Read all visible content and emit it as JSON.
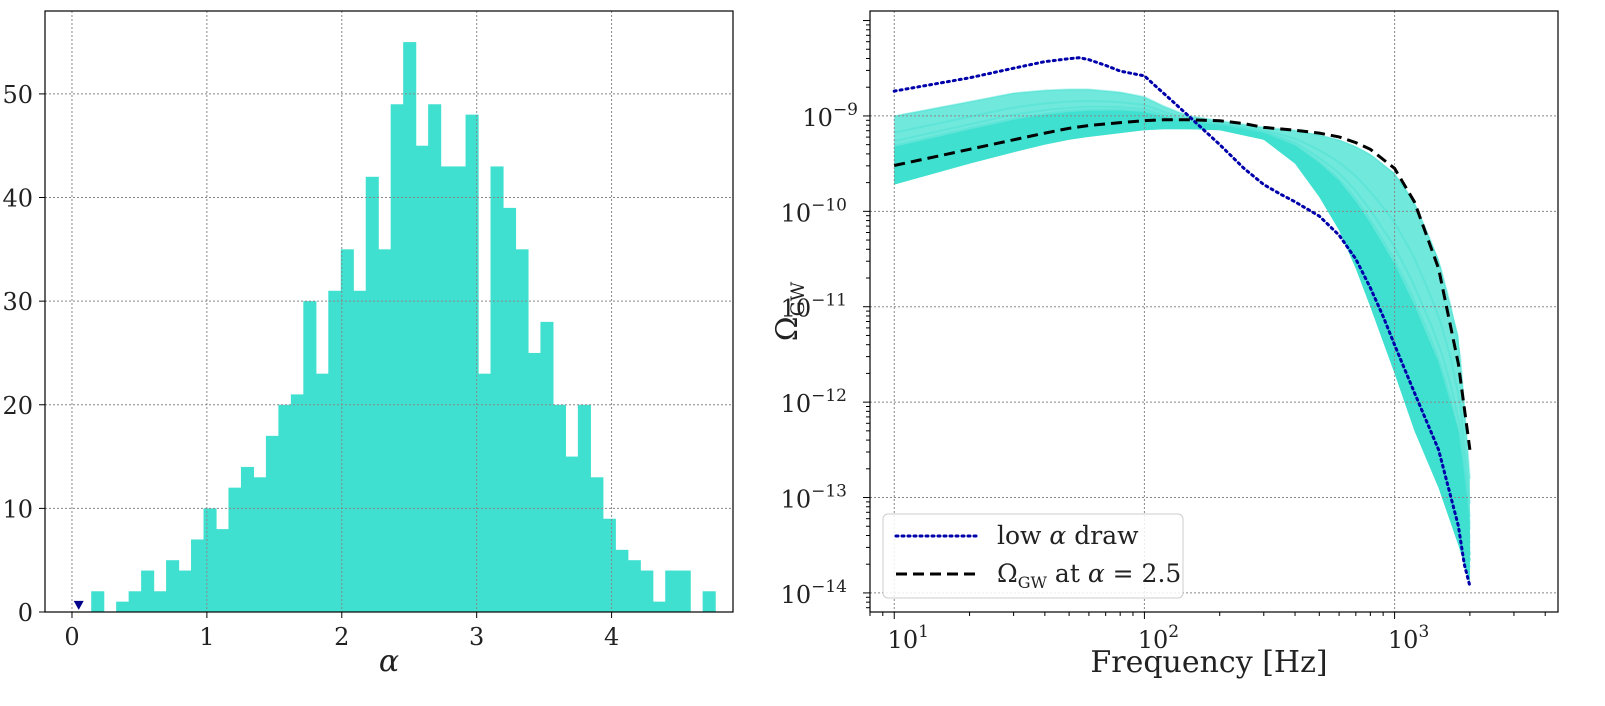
{
  "chart_data": [
    {
      "type": "bar",
      "subtype": "histogram",
      "xlabel": "α",
      "ylabel": "",
      "xlim": [
        -0.2,
        4.9
      ],
      "ylim": [
        0,
        58
      ],
      "xticks": [
        0,
        1,
        2,
        3,
        4
      ],
      "yticks": [
        0,
        10,
        20,
        30,
        40,
        50
      ],
      "grid": true,
      "bin_start": 0.05,
      "bin_width": 0.0925,
      "values": [
        0,
        2,
        0,
        1,
        2,
        4,
        2,
        5,
        4,
        7,
        10,
        8,
        12,
        14,
        13,
        17,
        20,
        21,
        30,
        23,
        31,
        35,
        31,
        42,
        35,
        49,
        55,
        45,
        49,
        43,
        43,
        48,
        23,
        43,
        39,
        35,
        25,
        28,
        20,
        15,
        20,
        13,
        9,
        6,
        5,
        4,
        1,
        4,
        4,
        0,
        2
      ],
      "bar_color": "#40E0D0",
      "marker": {
        "x": 0.05,
        "y": 0.5,
        "shape": "triangle-down",
        "color": "#00008B"
      }
    },
    {
      "type": "line",
      "scale": "log-log",
      "xlabel": "Frequency [Hz]",
      "ylabel": "Ω_GW",
      "xlim": [
        8,
        4500
      ],
      "ylim_log10": [
        -14.2,
        -7.9
      ],
      "xticks": [
        "10^1",
        "10^2",
        "10^3"
      ],
      "yticks": [
        "10^-9",
        "10^-10",
        "10^-11",
        "10^-12",
        "10^-13",
        "10^-14"
      ],
      "grid": true,
      "legend_position": "lower-left",
      "band_color": "#40E0D0",
      "band": {
        "f": [
          10,
          20,
          30,
          40,
          50,
          60,
          80,
          100,
          120,
          150,
          200,
          300,
          400,
          500,
          600,
          700,
          800,
          1000,
          1200,
          1500,
          1800,
          1900,
          2000
        ],
        "upper_log10": [
          -9.0,
          -8.85,
          -8.76,
          -8.73,
          -8.72,
          -8.72,
          -8.75,
          -8.8,
          -8.9,
          -9.0,
          -9.05,
          -9.12,
          -9.15,
          -9.2,
          -9.25,
          -9.32,
          -9.4,
          -9.6,
          -9.9,
          -10.5,
          -11.3,
          -12.0,
          -12.8
        ],
        "lower_log10": [
          -9.72,
          -9.5,
          -9.38,
          -9.3,
          -9.25,
          -9.22,
          -9.18,
          -9.15,
          -9.14,
          -9.14,
          -9.15,
          -9.25,
          -9.5,
          -9.85,
          -10.2,
          -10.6,
          -11.0,
          -11.7,
          -12.3,
          -12.9,
          -13.5,
          -13.7,
          -13.9
        ]
      },
      "series": [
        {
          "name": "low α draw",
          "style": "dotted",
          "color": "#0000AA",
          "f": [
            10,
            20,
            30,
            40,
            50,
            55,
            60,
            70,
            80,
            100,
            110,
            130,
            150,
            200,
            250,
            300,
            350,
            400,
            500,
            600,
            700,
            800,
            900,
            1000,
            1200,
            1500,
            1800,
            1900,
            2000
          ],
          "log10_omega": [
            -8.74,
            -8.6,
            -8.5,
            -8.43,
            -8.4,
            -8.39,
            -8.41,
            -8.47,
            -8.53,
            -8.58,
            -8.68,
            -8.85,
            -9.0,
            -9.3,
            -9.55,
            -9.72,
            -9.82,
            -9.9,
            -10.05,
            -10.25,
            -10.5,
            -10.8,
            -11.1,
            -11.4,
            -11.9,
            -12.5,
            -13.3,
            -13.7,
            -13.93
          ]
        },
        {
          "name": "Ω_GW at α = 2.5",
          "style": "dashed",
          "color": "#000000",
          "f": [
            10,
            20,
            30,
            40,
            50,
            60,
            80,
            100,
            120,
            150,
            200,
            250,
            300,
            400,
            500,
            600,
            700,
            800,
            1000,
            1200,
            1500,
            1800,
            2000
          ],
          "log10_omega": [
            -9.52,
            -9.35,
            -9.25,
            -9.18,
            -9.13,
            -9.1,
            -9.07,
            -9.05,
            -9.04,
            -9.04,
            -9.05,
            -9.08,
            -9.12,
            -9.15,
            -9.18,
            -9.22,
            -9.28,
            -9.35,
            -9.55,
            -9.9,
            -10.6,
            -11.6,
            -12.5
          ]
        }
      ]
    }
  ]
}
